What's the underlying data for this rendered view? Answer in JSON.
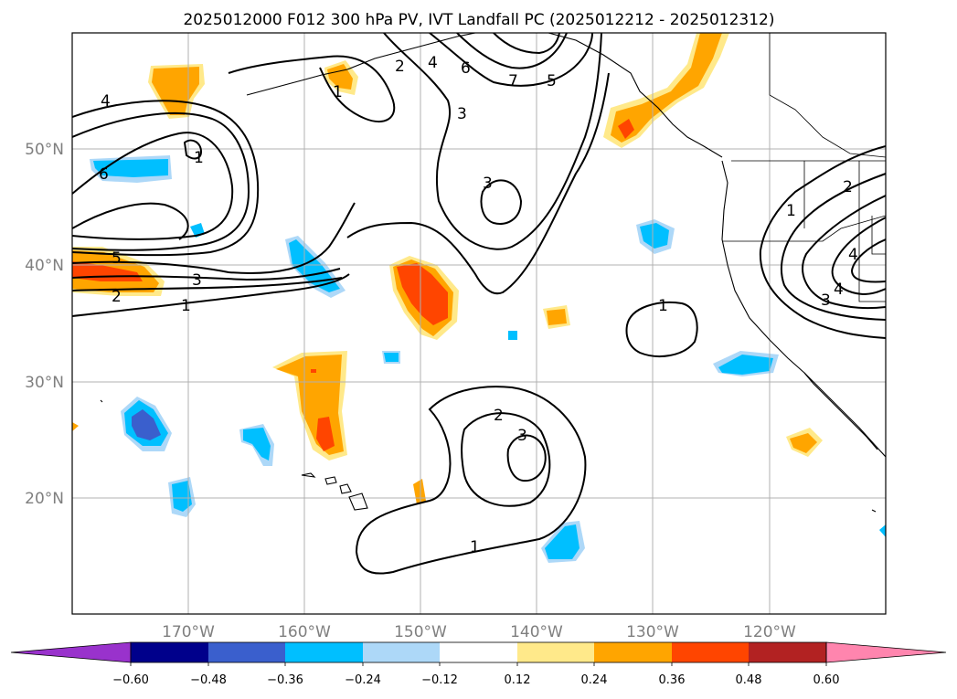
{
  "title": "2025012000 F012 300 hPa PV, IVT Landfall PC (2025012212 - 2025012312)",
  "map": {
    "lon_range": [
      -180,
      -110
    ],
    "lat_range": [
      10,
      60
    ],
    "lon_labels": [
      "170°W",
      "160°W",
      "150°W",
      "140°W",
      "130°W",
      "120°W"
    ],
    "lat_labels": [
      "50°N",
      "40°N",
      "30°N",
      "20°N"
    ],
    "gridlines": true,
    "colors": {
      "gridline": "#b0b0b0",
      "contour": "#000000",
      "coast": "#000000"
    }
  },
  "contour_labels": [
    "1",
    "2",
    "3",
    "4",
    "5",
    "6",
    "7"
  ],
  "colorbar": {
    "ticks": [
      "−0.60",
      "−0.48",
      "−0.36",
      "−0.24",
      "−0.12",
      "0.12",
      "0.24",
      "0.36",
      "0.48",
      "0.60"
    ],
    "extend": "both",
    "colors": [
      "#9932cc",
      "#00008b",
      "#3a5fcd",
      "#00bfff",
      "#add8f8",
      "#ffffff",
      "#ffe98a",
      "#ffa500",
      "#ff4500",
      "#b22222",
      "#ff85ae"
    ]
  }
}
